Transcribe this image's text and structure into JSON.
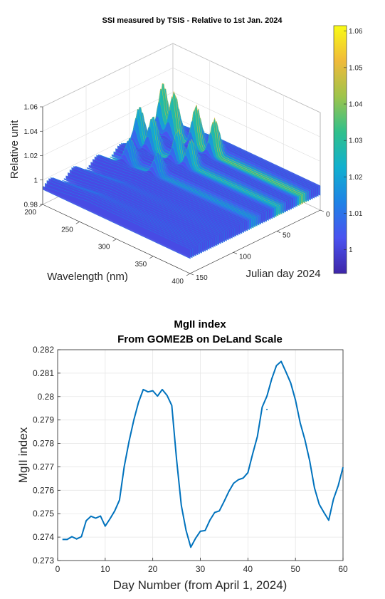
{
  "chart_data": [
    {
      "type": "surface",
      "title": "SSI measured by TSIS - Relative to 1st Jan. 2024",
      "xlabel": "Wavelength (nm)",
      "ylabel": "Julian day 2024",
      "zlabel": "Relative unit",
      "x_ticks": [
        "200",
        "250",
        "300",
        "350",
        "400"
      ],
      "y_ticks": [
        "0",
        "50",
        "100",
        "150"
      ],
      "z_ticks": [
        "0.98",
        "1",
        "1.02",
        "1.04",
        "1.06"
      ],
      "colorbar_ticks": [
        "1",
        "1.01",
        "1.02",
        "1.03",
        "1.04",
        "1.05",
        "1.06"
      ],
      "xlim": [
        200,
        400
      ],
      "ylim": [
        0,
        150
      ],
      "zlim": [
        0.98,
        1.06
      ],
      "colormap": "parula",
      "colormap_colors": [
        "#3e26a8",
        "#4a52f0",
        "#1f82e6",
        "#11b0cf",
        "#30c08b",
        "#9ec44b",
        "#f0ba3a",
        "#f9fb15"
      ],
      "peaks": [
        {
          "wavelength": 210,
          "day": 20,
          "value": 1.045
        },
        {
          "wavelength": 225,
          "day": 20,
          "value": 1.04
        },
        {
          "wavelength": 255,
          "day": 20,
          "value": 1.035
        },
        {
          "wavelength": 280,
          "day": 20,
          "value": 1.03
        },
        {
          "wavelength": 210,
          "day": 47,
          "value": 1.035
        },
        {
          "wavelength": 228,
          "day": 47,
          "value": 1.03
        },
        {
          "wavelength": 262,
          "day": 47,
          "value": 1.025
        },
        {
          "wavelength": 280,
          "day": 47,
          "value": 1.022
        },
        {
          "wavelength": 230,
          "day": 75,
          "value": 1.022
        },
        {
          "wavelength": 268,
          "day": 75,
          "value": 1.018
        }
      ],
      "grid": true
    },
    {
      "type": "line",
      "title": [
        "MgII index",
        "From GOME2B on DeLand Scale"
      ],
      "xlabel": "Day Number (from April 1, 2024)",
      "ylabel": "MgII index",
      "xlim": [
        0,
        60
      ],
      "ylim": [
        0.273,
        0.282
      ],
      "x_ticks": [
        0,
        10,
        20,
        30,
        40,
        50,
        60
      ],
      "y_ticks": [
        0.273,
        0.274,
        0.275,
        0.276,
        0.277,
        0.278,
        0.279,
        0.28,
        0.281,
        0.282
      ],
      "grid": true,
      "line_color": "#0072bd",
      "series": [
        {
          "x": [
            1,
            2,
            3,
            4,
            5,
            6,
            7,
            8,
            9,
            10,
            11,
            12,
            13,
            14,
            15,
            16,
            17,
            18,
            19,
            20,
            21,
            22,
            23,
            24,
            25,
            26,
            27,
            28,
            29,
            30,
            31,
            32,
            33,
            34,
            35,
            36,
            37,
            38,
            39,
            40,
            41,
            42,
            43,
            44,
            45,
            46,
            47,
            48,
            49,
            50,
            51,
            52,
            53,
            54,
            55,
            56,
            57,
            58,
            59,
            60
          ],
          "y": [
            0.2739,
            0.2739,
            0.27402,
            0.27392,
            0.27402,
            0.2747,
            0.27489,
            0.27481,
            0.2749,
            0.27447,
            0.27478,
            0.27512,
            0.27558,
            0.27702,
            0.27808,
            0.27898,
            0.27975,
            0.2803,
            0.2802,
            0.28025,
            0.28002,
            0.2803,
            0.28005,
            0.27962,
            0.27732,
            0.27535,
            0.27428,
            0.27357,
            0.27395,
            0.27425,
            0.27428,
            0.27472,
            0.27505,
            0.27512,
            0.27552,
            0.27595,
            0.2763,
            0.27645,
            0.27652,
            0.27675,
            0.27755,
            0.2783,
            0.27955,
            0.28002,
            0.28075,
            0.28132,
            0.2815,
            0.28105,
            0.28058,
            0.27985,
            0.27888,
            0.27815,
            0.27725,
            0.2761,
            0.2754,
            0.27505,
            0.27472,
            0.27562,
            0.2762,
            0.27698
          ]
        }
      ],
      "stray_points": [
        {
          "x": 44,
          "y": 0.27945
        }
      ]
    }
  ]
}
